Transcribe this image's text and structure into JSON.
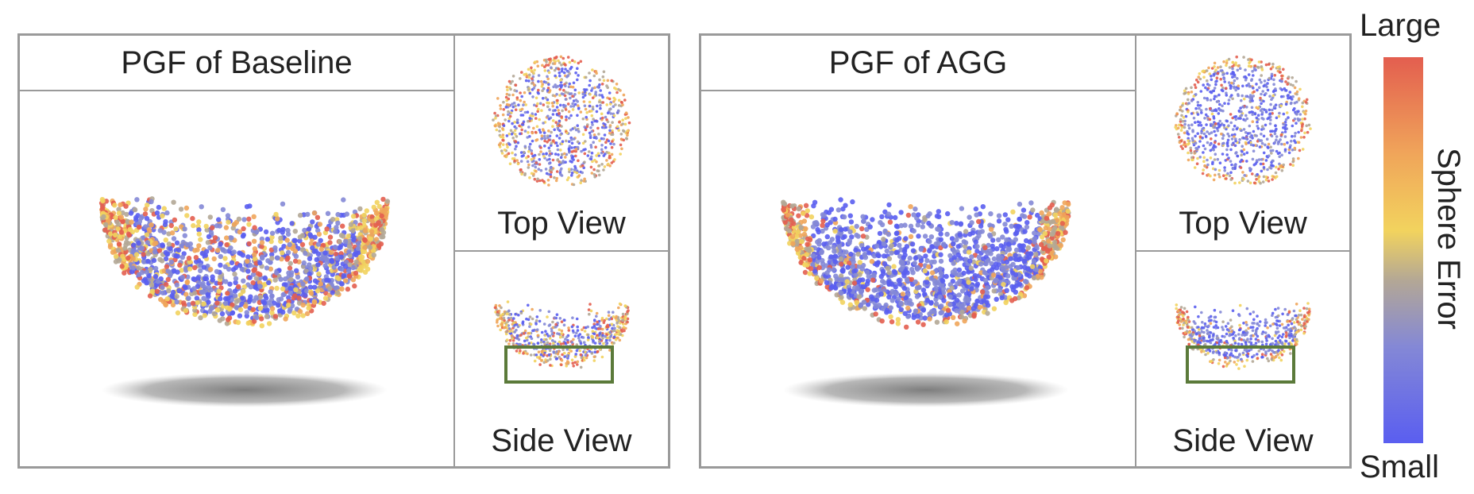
{
  "panels": [
    {
      "id": "baseline",
      "title": "PGF of Baseline",
      "top_view_label": "Top View",
      "side_view_label": "Side View",
      "error_mix": 0.45
    },
    {
      "id": "agg",
      "title": "PGF of AGG",
      "top_view_label": "Top View",
      "side_view_label": "Side View",
      "error_mix": 0.18
    }
  ],
  "colorbar": {
    "label": "Sphere Error",
    "max_label": "Large",
    "min_label": "Small",
    "colors": [
      "#5a5ef0",
      "#8488d6",
      "#b3a796",
      "#f2d35e",
      "#f0a55a",
      "#e35e4f"
    ]
  },
  "highlight_box_color": "#5b7a3a"
}
